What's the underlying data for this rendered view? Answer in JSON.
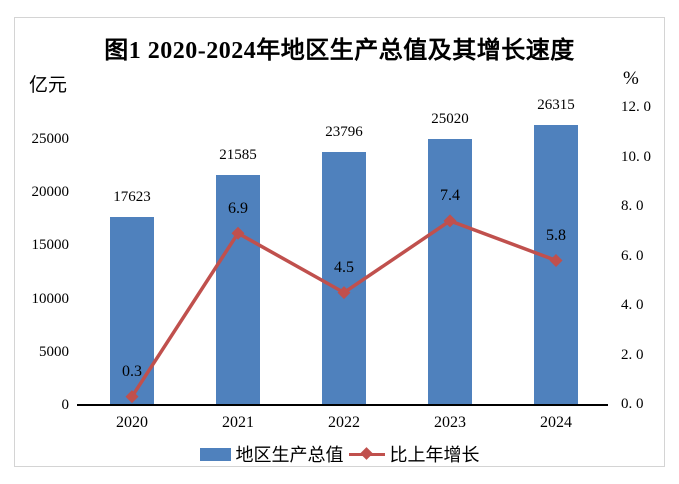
{
  "chart_data": {
    "type": "combo-bar-line",
    "title": "图1 2020-2024年地区生产总值及其增长速度",
    "categories": [
      "2020",
      "2021",
      "2022",
      "2023",
      "2024"
    ],
    "series": [
      {
        "name": "地区生产总值",
        "type": "bar",
        "axis": "left",
        "values": [
          17623,
          21585,
          23796,
          25020,
          26315
        ],
        "value_labels": [
          "17623",
          "21585",
          "23796",
          "25020",
          "26315"
        ],
        "color": "#4F81BD"
      },
      {
        "name": "比上年增长",
        "type": "line",
        "axis": "right",
        "marker": "diamond",
        "values": [
          0.3,
          6.9,
          4.5,
          7.4,
          5.8
        ],
        "value_labels": [
          "0.3",
          "6.9",
          "4.5",
          "7.4",
          "5.8"
        ],
        "color": "#C0504D"
      }
    ],
    "left_axis": {
      "unit": "亿元",
      "tick_labels": [
        "0",
        "5000",
        "10000",
        "15000",
        "20000",
        "25000"
      ],
      "tick_values": [
        0,
        5000,
        10000,
        15000,
        20000,
        25000
      ],
      "range_shown": [
        0,
        25000
      ]
    },
    "right_axis": {
      "unit": "%",
      "tick_labels": [
        "0. 0",
        "2. 0",
        "4. 0",
        "6. 0",
        "8. 0",
        "10. 0",
        "12. 0"
      ],
      "tick_values": [
        0,
        2,
        4,
        6,
        8,
        10,
        12
      ],
      "range_shown": [
        0,
        12
      ]
    },
    "grid": "off",
    "legend_position": "bottom"
  },
  "colors": {
    "bar": "#4F81BD",
    "line": "#C0504D",
    "text": "#000000",
    "frame_border": "#d4d4d4"
  }
}
